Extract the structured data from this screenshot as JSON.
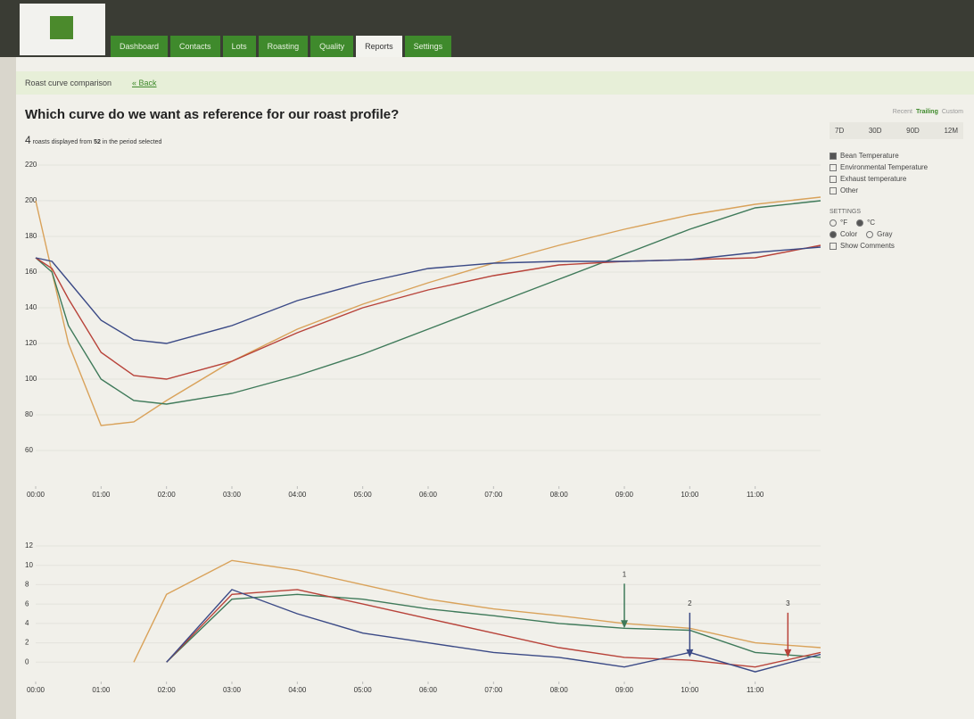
{
  "app": {
    "nav": [
      "Dashboard",
      "Contacts",
      "Lots",
      "Roasting",
      "Quality",
      "Reports",
      "Settings"
    ],
    "active_tab": 5,
    "breadcrumb": "Roast curve comparison",
    "back": "« Back",
    "heading": "Which curve do we want as reference for our roast profile?",
    "summary": {
      "count": "4",
      "text1": "roasts displayed from",
      "total": "52",
      "text2": "in the period selected"
    },
    "period_modes": [
      "Recent",
      "Trailing",
      "Custom"
    ],
    "periods": [
      "7D",
      "30D",
      "90D",
      "12M"
    ],
    "measures": [
      {
        "label": "Bean Temperature",
        "checked": true
      },
      {
        "label": "Environmental Temperature",
        "checked": false
      },
      {
        "label": "Exhaust temperature",
        "checked": false
      },
      {
        "label": "Other",
        "checked": false
      }
    ],
    "settings_title": "SETTINGS",
    "settings": [
      [
        {
          "label": "°F",
          "checked": false
        },
        {
          "label": "°C",
          "checked": true
        }
      ],
      [
        {
          "label": "Color",
          "checked": true
        },
        {
          "label": "Gray",
          "checked": false
        }
      ]
    ],
    "show_comments": "Show Comments"
  },
  "chart_data": [
    {
      "type": "line",
      "x": [
        0,
        0.25,
        0.5,
        1,
        1.5,
        2,
        3,
        4,
        5,
        6,
        7,
        8,
        9,
        10,
        11,
        12
      ],
      "xlim": [
        0,
        12
      ],
      "xticks": [
        {
          "value": 0,
          "label": "00:00"
        },
        {
          "value": 1,
          "label": "01:00"
        },
        {
          "value": 2,
          "label": "02:00"
        },
        {
          "value": 3,
          "label": "03:00"
        },
        {
          "value": 4,
          "label": "04:00"
        },
        {
          "value": 5,
          "label": "05:00"
        },
        {
          "value": 6,
          "label": "06:00"
        },
        {
          "value": 7,
          "label": "07:00"
        },
        {
          "value": 8,
          "label": "08:00"
        },
        {
          "value": 9,
          "label": "09:00"
        },
        {
          "value": 10,
          "label": "10:00"
        },
        {
          "value": 11,
          "label": "11:00"
        }
      ],
      "ylim": [
        40,
        220
      ],
      "yticks": [
        60,
        80,
        100,
        120,
        140,
        160,
        180,
        200,
        220
      ],
      "grid": true,
      "series": [
        {
          "color": "#d9a25a",
          "values": [
            200,
            160,
            120,
            74,
            76,
            88,
            110,
            128,
            142,
            154,
            165,
            175,
            184,
            192,
            198,
            202
          ]
        },
        {
          "color": "#3f7a5a",
          "values": [
            168,
            160,
            130,
            100,
            88,
            86,
            92,
            102,
            114,
            128,
            142,
            156,
            170,
            184,
            196,
            200
          ]
        },
        {
          "color": "#b8433a",
          "values": [
            168,
            162,
            145,
            115,
            102,
            100,
            110,
            126,
            140,
            150,
            158,
            164,
            166,
            167,
            168,
            175
          ]
        },
        {
          "color": "#3b4a86",
          "values": [
            168,
            166,
            155,
            133,
            122,
            120,
            130,
            144,
            154,
            162,
            165,
            166,
            166,
            167,
            171,
            174
          ]
        }
      ]
    },
    {
      "type": "line",
      "x": [
        0,
        0.25,
        0.5,
        1,
        1.5,
        2,
        3,
        4,
        5,
        6,
        7,
        8,
        9,
        10,
        11,
        12
      ],
      "xlim": [
        0,
        12
      ],
      "xticks": [
        {
          "value": 0,
          "label": "00:00"
        },
        {
          "value": 1,
          "label": "01:00"
        },
        {
          "value": 2,
          "label": "02:00"
        },
        {
          "value": 3,
          "label": "03:00"
        },
        {
          "value": 4,
          "label": "04:00"
        },
        {
          "value": 5,
          "label": "05:00"
        },
        {
          "value": 6,
          "label": "06:00"
        },
        {
          "value": 7,
          "label": "07:00"
        },
        {
          "value": 8,
          "label": "08:00"
        },
        {
          "value": 9,
          "label": "09:00"
        },
        {
          "value": 10,
          "label": "10:00"
        },
        {
          "value": 11,
          "label": "11:00"
        }
      ],
      "ylim": [
        -2,
        12
      ],
      "yticks": [
        0,
        2,
        4,
        6,
        8,
        10,
        12
      ],
      "grid": true,
      "series": [
        {
          "color": "#d9a25a",
          "values": [
            null,
            null,
            null,
            null,
            0,
            7,
            10.5,
            9.5,
            8,
            6.5,
            5.5,
            4.8,
            4,
            3.5,
            2,
            1.5
          ]
        },
        {
          "color": "#3f7a5a",
          "values": [
            null,
            null,
            null,
            null,
            null,
            0,
            6.5,
            7,
            6.5,
            5.5,
            4.8,
            4,
            3.5,
            3.3,
            1,
            0.5
          ]
        },
        {
          "color": "#b8433a",
          "values": [
            null,
            null,
            null,
            null,
            null,
            0,
            7,
            7.5,
            6,
            4.5,
            3,
            1.5,
            0.5,
            0.2,
            -0.5,
            1
          ]
        },
        {
          "color": "#3b4a86",
          "values": [
            null,
            null,
            null,
            null,
            null,
            0,
            7.5,
            5,
            3,
            2,
            1,
            0.5,
            -0.5,
            1,
            -1,
            0.8
          ]
        }
      ],
      "annotations": [
        {
          "text": "1",
          "x": 9,
          "y": 3.5,
          "color": "#3f7a5a"
        },
        {
          "text": "2",
          "x": 10,
          "y": 0.5,
          "color": "#3b4a86"
        },
        {
          "text": "3",
          "x": 11.5,
          "y": 0.5,
          "color": "#b8433a"
        }
      ]
    }
  ]
}
